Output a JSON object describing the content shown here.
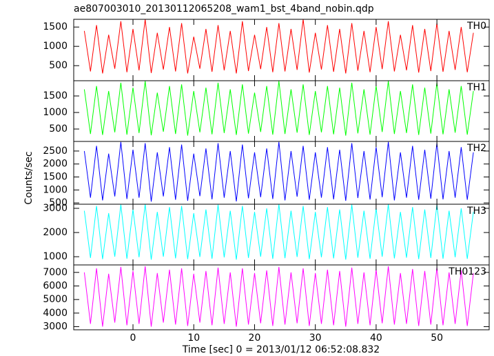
{
  "chart_data": [
    {
      "type": "line",
      "title": "ae807003010_20130112065208_wam1_bst_4band_nobin.qdp",
      "x": [
        -8,
        -7,
        -6,
        -5,
        -4,
        -3,
        -2,
        -1,
        0,
        1,
        2,
        3,
        4,
        5,
        6,
        7,
        8,
        9,
        10,
        11,
        12,
        13,
        14,
        15,
        16,
        17,
        18,
        19,
        20,
        21,
        22,
        23,
        24,
        25,
        26,
        27,
        28,
        29,
        30,
        31,
        32,
        33,
        34,
        35,
        36,
        37,
        38,
        39,
        40,
        41,
        42,
        43,
        44,
        45,
        46,
        47,
        48,
        49,
        50,
        51,
        52,
        53,
        54,
        55,
        56
      ],
      "series": [
        {
          "name": "TH0",
          "color": "#ff0000",
          "values": [
            1400,
            350,
            1550,
            300,
            1300,
            420,
            1650,
            330,
            1450,
            380,
            1700,
            310,
            1350,
            400,
            1500,
            350,
            1600,
            300,
            1250,
            420,
            1450,
            340,
            1550,
            380,
            1400,
            300,
            1650,
            360,
            1300,
            410,
            1500,
            330,
            1600,
            350,
            1450,
            390,
            1700,
            320,
            1350,
            400,
            1550,
            340,
            1450,
            300,
            1600,
            370,
            1400,
            330,
            1500,
            410,
            1650,
            350,
            1300,
            380,
            1550,
            320,
            1450,
            360,
            1600,
            340,
            1400,
            390,
            1500,
            330,
            1350
          ]
        }
      ],
      "xlim": [
        -9.75,
        58.6
      ],
      "xticks": [
        0,
        10,
        20,
        30,
        40,
        50
      ],
      "ylim": [
        110,
        1700
      ],
      "yticks": [
        500,
        1000,
        1500
      ]
    },
    {
      "type": "line",
      "x": [
        -8,
        -7,
        -6,
        -5,
        -4,
        -3,
        -2,
        -1,
        0,
        1,
        2,
        3,
        4,
        5,
        6,
        7,
        8,
        9,
        10,
        11,
        12,
        13,
        14,
        15,
        16,
        17,
        18,
        19,
        20,
        21,
        22,
        23,
        24,
        25,
        26,
        27,
        28,
        29,
        30,
        31,
        32,
        33,
        34,
        35,
        36,
        37,
        38,
        39,
        40,
        41,
        42,
        43,
        44,
        45,
        46,
        47,
        48,
        49,
        50,
        51,
        52,
        53,
        54,
        55,
        56
      ],
      "series": [
        {
          "name": "TH1",
          "color": "#00ff00",
          "values": [
            1700,
            350,
            1800,
            320,
            1650,
            400,
            1900,
            330,
            1750,
            380,
            1950,
            310,
            1600,
            420,
            1800,
            350,
            1850,
            300,
            1650,
            400,
            1750,
            340,
            1900,
            380,
            1700,
            320,
            1850,
            360,
            1600,
            410,
            1800,
            330,
            1950,
            350,
            1700,
            390,
            1850,
            320,
            1650,
            400,
            1800,
            340,
            1750,
            300,
            1900,
            370,
            1700,
            330,
            1800,
            410,
            1950,
            350,
            1650,
            380,
            1850,
            320,
            1750,
            360,
            1900,
            340,
            1700,
            390,
            1800,
            330,
            1650
          ]
        }
      ],
      "xlim": [
        -9.75,
        58.6
      ],
      "xticks": [
        0,
        10,
        20,
        30,
        40,
        50
      ],
      "ylim": [
        125,
        1960
      ],
      "yticks": [
        500,
        1000,
        1500
      ]
    },
    {
      "type": "line",
      "y_label": "Counts/sec",
      "x": [
        -8,
        -7,
        -6,
        -5,
        -4,
        -3,
        -2,
        -1,
        0,
        1,
        2,
        3,
        4,
        5,
        6,
        7,
        8,
        9,
        10,
        11,
        12,
        13,
        14,
        15,
        16,
        17,
        18,
        19,
        20,
        21,
        22,
        23,
        24,
        25,
        26,
        27,
        28,
        29,
        30,
        31,
        32,
        33,
        34,
        35,
        36,
        37,
        38,
        39,
        40,
        41,
        42,
        43,
        44,
        45,
        46,
        47,
        48,
        49,
        50,
        51,
        52,
        53,
        54,
        55,
        56
      ],
      "series": [
        {
          "name": "TH2",
          "color": "#0000ff",
          "values": [
            2500,
            700,
            2700,
            600,
            2400,
            750,
            2850,
            650,
            2550,
            700,
            2800,
            550,
            2450,
            750,
            2650,
            620,
            2750,
            580,
            2400,
            760,
            2600,
            640,
            2800,
            700,
            2500,
            560,
            2750,
            680,
            2450,
            720,
            2600,
            650,
            2850,
            600,
            2500,
            740,
            2700,
            620,
            2450,
            700,
            2650,
            640,
            2550,
            580,
            2800,
            690,
            2500,
            630,
            2650,
            720,
            2850,
            600,
            2450,
            700,
            2700,
            620,
            2550,
            660,
            2800,
            640,
            2500,
            700,
            2650,
            620,
            2450
          ]
        }
      ],
      "xlim": [
        -9.75,
        58.6
      ],
      "xticks": [
        0,
        10,
        20,
        30,
        40,
        50
      ],
      "ylim": [
        450,
        2870
      ],
      "yticks": [
        500,
        1000,
        1500,
        2000,
        2500
      ]
    },
    {
      "type": "line",
      "x": [
        -8,
        -7,
        -6,
        -5,
        -4,
        -3,
        -2,
        -1,
        0,
        1,
        2,
        3,
        4,
        5,
        6,
        7,
        8,
        9,
        10,
        11,
        12,
        13,
        14,
        15,
        16,
        17,
        18,
        19,
        20,
        21,
        22,
        23,
        24,
        25,
        26,
        27,
        28,
        29,
        30,
        31,
        32,
        33,
        34,
        35,
        36,
        37,
        38,
        39,
        40,
        41,
        42,
        43,
        44,
        45,
        46,
        47,
        48,
        49,
        50,
        51,
        52,
        53,
        54,
        55,
        56
      ],
      "series": [
        {
          "name": "TH3",
          "color": "#00ffff",
          "values": [
            2900,
            950,
            3100,
            900,
            2800,
            1000,
            3150,
            920,
            2950,
            980,
            3170,
            880,
            2850,
            1000,
            3050,
            930,
            3100,
            900,
            2800,
            990,
            2950,
            920,
            3150,
            970,
            2900,
            880,
            3100,
            950,
            2850,
            1000,
            3000,
            910,
            3170,
            940,
            2900,
            990,
            3100,
            900,
            2850,
            980,
            3050,
            930,
            2950,
            880,
            3150,
            960,
            2900,
            920,
            3000,
            1000,
            3170,
            930,
            2850,
            960,
            3050,
            900,
            2950,
            950,
            3150,
            920,
            2900,
            980,
            3000,
            910,
            2850
          ]
        }
      ],
      "xlim": [
        -9.75,
        58.6
      ],
      "xticks": [
        0,
        10,
        20,
        30,
        40,
        50
      ],
      "ylim": [
        660,
        3170
      ],
      "yticks": [
        1000,
        2000,
        3000
      ]
    },
    {
      "type": "line",
      "x_label": "Time [sec] 0 = 2013/01/12 06:52:08.832",
      "x": [
        -8,
        -7,
        -6,
        -5,
        -4,
        -3,
        -2,
        -1,
        0,
        1,
        2,
        3,
        4,
        5,
        6,
        7,
        8,
        9,
        10,
        11,
        12,
        13,
        14,
        15,
        16,
        17,
        18,
        19,
        20,
        21,
        22,
        23,
        24,
        25,
        26,
        27,
        28,
        29,
        30,
        31,
        32,
        33,
        34,
        35,
        36,
        37,
        38,
        39,
        40,
        41,
        42,
        43,
        44,
        45,
        46,
        47,
        48,
        49,
        50,
        51,
        52,
        53,
        54,
        55,
        56
      ],
      "series": [
        {
          "name": "TH0123",
          "color": "#ff00ff",
          "values": [
            7000,
            3200,
            7300,
            3000,
            6900,
            3300,
            7400,
            3100,
            7100,
            3200,
            7450,
            3000,
            6950,
            3300,
            7200,
            3150,
            7300,
            3050,
            6900,
            3300,
            7100,
            3100,
            7350,
            3200,
            7000,
            3000,
            7300,
            3150,
            6950,
            3250,
            7150,
            3050,
            7400,
            3150,
            7000,
            3250,
            7300,
            3050,
            6950,
            3200,
            7200,
            3100,
            7100,
            3000,
            7350,
            3200,
            7000,
            3100,
            7200,
            3250,
            7450,
            3150,
            6950,
            3200,
            7250,
            3050,
            7100,
            3150,
            7350,
            3100,
            7000,
            3200,
            7150,
            3050,
            6950
          ]
        }
      ],
      "xlim": [
        -9.75,
        58.6
      ],
      "xticks": [
        0,
        10,
        20,
        30,
        40,
        50
      ],
      "ylim": [
        2770,
        7550
      ],
      "yticks": [
        3000,
        4000,
        5000,
        6000,
        7000
      ]
    }
  ]
}
